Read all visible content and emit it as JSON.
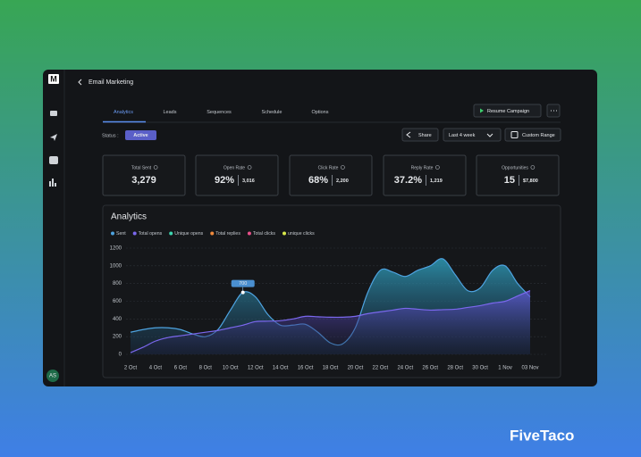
{
  "app": {
    "logo": "M",
    "title": "Email Marketing",
    "avatar": "AS",
    "brand": "FiveTaco"
  },
  "tabs": [
    "Analytics",
    "Leads",
    "Sequences",
    "Schedule",
    "Options"
  ],
  "buttons": {
    "resume": "Resume Campaign",
    "share": "Share",
    "period": "Last 4 week",
    "custom": "Custom Range"
  },
  "status": {
    "label": "Status :",
    "value": "Active"
  },
  "stats": [
    {
      "label": "Total Sent",
      "value": "3,279"
    },
    {
      "label": "Open Rate",
      "value": "92%",
      "detail": "3,016"
    },
    {
      "label": "Click Rate",
      "value": "68%",
      "detail": "2,200"
    },
    {
      "label": "Reply Rate",
      "value": "37.2%",
      "detail": "1,219"
    },
    {
      "label": "Opportunities",
      "value": "15",
      "detail": "$7,800"
    }
  ],
  "chart": {
    "type": "area",
    "title": "Analytics",
    "categories": [
      "2 Oct",
      null,
      "4 Oct",
      null,
      "6 Oct",
      null,
      "8 Oct",
      null,
      "10 Oct",
      null,
      "12 Oct",
      null,
      "14 Oct",
      null,
      "16 Oct",
      null,
      "18 Oct",
      null,
      "20 Oct",
      null,
      "22 Oct",
      null,
      "24 Oct",
      null,
      "26 Oct",
      null,
      "28 Oct",
      null,
      "30 Oct",
      null,
      "1 Nov",
      null,
      "03 Nov"
    ],
    "ylim": [
      0,
      1200
    ],
    "yticks": [
      0,
      200,
      400,
      600,
      800,
      1000,
      1200
    ],
    "grid": true,
    "series": [
      {
        "name": "Sent",
        "color": "#4ea3e0",
        "values": [
          250,
          280,
          300,
          300,
          280,
          230,
          200,
          280,
          500,
          700,
          650,
          450,
          330,
          330,
          340,
          250,
          130,
          120,
          300,
          700,
          950,
          930,
          880,
          950,
          1000,
          1080,
          900,
          720,
          750,
          950,
          1000,
          800,
          650
        ]
      },
      {
        "name": "Total opens",
        "color": "#7b68ee",
        "values": [
          20,
          80,
          150,
          190,
          210,
          230,
          250,
          270,
          300,
          330,
          370,
          375,
          380,
          400,
          430,
          425,
          420,
          420,
          430,
          460,
          480,
          500,
          520,
          510,
          500,
          505,
          510,
          530,
          550,
          580,
          600,
          660,
          720
        ]
      },
      {
        "name": "Unique opens",
        "color": "#3ed6b0"
      },
      {
        "name": "Total replies",
        "color": "#f08a3c"
      },
      {
        "name": "Total clicks",
        "color": "#e8508a"
      },
      {
        "name": "unique clicks",
        "color": "#d8e84a"
      }
    ]
  }
}
